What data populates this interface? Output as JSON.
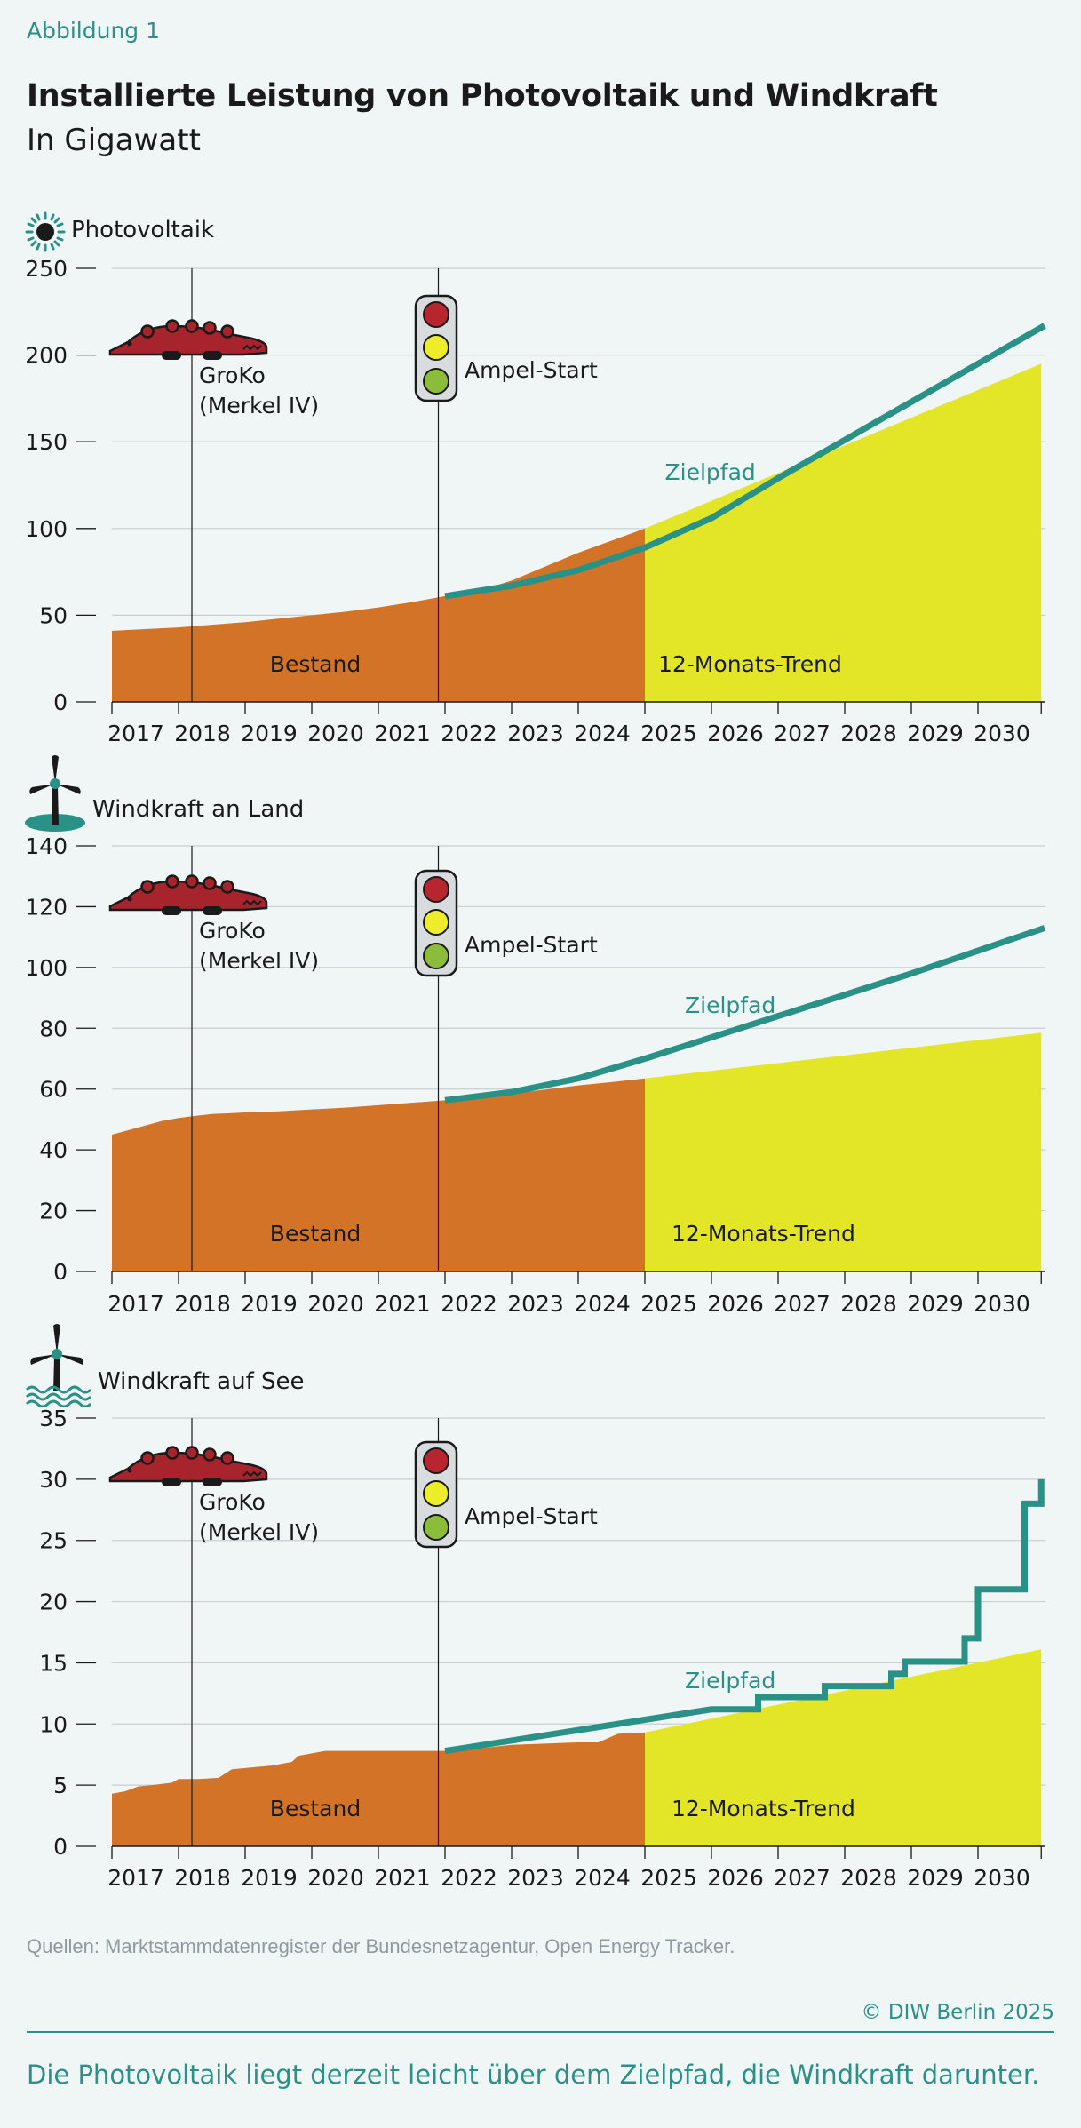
{
  "figure_label": "Abbildung 1",
  "title": "Installierte Leistung von Photovoltaik und Windkraft",
  "subtitle": "In Gigawatt",
  "source": "Quellen: Marktstammdatenregister der Bundesnetzagentur, Open Energy Tracker.",
  "copyright": "© DIW Berlin 2025",
  "caption": "Die Photovoltaik liegt derzeit leicht über dem Zielpfad, die Windkraft darunter.",
  "colors": {
    "bestand": "#d27328",
    "trend": "#e3e527",
    "zielpfad": "#2a9186",
    "grid": "#c8cfd1",
    "background": "#f0f5f5",
    "croc": "#a8242d",
    "light_red": "#b7262f",
    "light_yellow": "#eded2b",
    "light_green": "#8bbd3a"
  },
  "annotations": {
    "groko": "GroKo",
    "groko_sub": "(Merkel IV)",
    "ampel": "Ampel-Start",
    "zielpfad": "Zielpfad",
    "bestand": "Bestand",
    "trend": "12-Monats-Trend"
  },
  "chart_data": [
    {
      "type": "area",
      "panel_title": "Photovoltaik",
      "icon": "sun-icon",
      "x_ticks": [
        "2017",
        "2018",
        "2019",
        "2020",
        "2021",
        "2022",
        "2023",
        "2024",
        "2025",
        "2026",
        "2027",
        "2028",
        "2029",
        "2030"
      ],
      "y_ticks": [
        0,
        50,
        100,
        150,
        200,
        250
      ],
      "ylim": [
        0,
        250
      ],
      "events": [
        {
          "label": "GroKo",
          "date": 2018.2
        },
        {
          "label": "Ampel-Start",
          "date": 2021.9
        }
      ],
      "series": [
        {
          "name": "Bestand",
          "type": "area",
          "x": [
            2017.0,
            2017.5,
            2018.0,
            2018.5,
            2019.0,
            2019.5,
            2020.0,
            2020.5,
            2021.0,
            2021.5,
            2022.0,
            2022.5,
            2023.0,
            2023.5,
            2024.0,
            2024.5,
            2025.0
          ],
          "values": [
            41,
            42,
            43,
            44.5,
            46,
            48,
            50,
            52,
            54.5,
            57.5,
            61,
            64,
            70,
            78,
            86,
            93,
            100
          ]
        },
        {
          "name": "12-Monats-Trend",
          "type": "area",
          "x": [
            2025.0,
            2030.95
          ],
          "values": [
            100,
            195
          ]
        },
        {
          "name": "Zielpfad",
          "type": "line",
          "x": [
            2022.0,
            2023.0,
            2024.0,
            2025.0,
            2026.0,
            2027.0,
            2028.0,
            2029.0,
            2030.0,
            2031.0
          ],
          "values": [
            61,
            67,
            76,
            89,
            106,
            129,
            151,
            173,
            195,
            217
          ]
        }
      ]
    },
    {
      "type": "area",
      "panel_title": "Windkraft an Land",
      "icon": "wind-turbine-land-icon",
      "x_ticks": [
        "2017",
        "2018",
        "2019",
        "2020",
        "2021",
        "2022",
        "2023",
        "2024",
        "2025",
        "2026",
        "2027",
        "2028",
        "2029",
        "2030"
      ],
      "y_ticks": [
        0,
        20,
        40,
        60,
        80,
        100,
        120,
        140
      ],
      "ylim": [
        0,
        140
      ],
      "events": [
        {
          "label": "GroKo",
          "date": 2018.2
        },
        {
          "label": "Ampel-Start",
          "date": 2021.9
        }
      ],
      "series": [
        {
          "name": "Bestand",
          "type": "area",
          "x": [
            2017.0,
            2017.25,
            2017.5,
            2017.75,
            2018.0,
            2018.25,
            2018.5,
            2019.0,
            2019.5,
            2020.0,
            2020.5,
            2021.0,
            2021.5,
            2022.0,
            2022.5,
            2023.0,
            2023.5,
            2024.0,
            2024.5,
            2025.0
          ],
          "values": [
            45,
            46.5,
            48,
            49.5,
            50.5,
            51.2,
            51.8,
            52.3,
            52.7,
            53.3,
            53.9,
            54.7,
            55.5,
            56.3,
            57.3,
            58.5,
            59.8,
            61.2,
            62.3,
            63.5
          ]
        },
        {
          "name": "12-Monats-Trend",
          "type": "area",
          "x": [
            2025.0,
            2030.95
          ],
          "values": [
            63.5,
            78.5
          ]
        },
        {
          "name": "Zielpfad",
          "type": "line",
          "x": [
            2022.0,
            2023.0,
            2024.0,
            2025.0,
            2026.0,
            2027.0,
            2028.0,
            2029.0,
            2030.0,
            2031.0
          ],
          "values": [
            56.3,
            59,
            63.5,
            70,
            77,
            84,
            91,
            98,
            105.5,
            113
          ]
        }
      ]
    },
    {
      "type": "area",
      "panel_title": "Windkraft auf See",
      "icon": "wind-turbine-sea-icon",
      "x_ticks": [
        "2017",
        "2018",
        "2019",
        "2020",
        "2021",
        "2022",
        "2023",
        "2024",
        "2025",
        "2026",
        "2027",
        "2028",
        "2029",
        "2030"
      ],
      "y_ticks": [
        0,
        5,
        10,
        15,
        20,
        25,
        30,
        35
      ],
      "ylim": [
        0,
        35
      ],
      "events": [
        {
          "label": "GroKo",
          "date": 2018.2
        },
        {
          "label": "Ampel-Start",
          "date": 2021.9
        }
      ],
      "series": [
        {
          "name": "Bestand",
          "type": "area",
          "x": [
            2017.0,
            2017.2,
            2017.4,
            2017.6,
            2017.9,
            2018.0,
            2018.3,
            2018.6,
            2018.8,
            2019.0,
            2019.4,
            2019.7,
            2019.8,
            2020.0,
            2020.2,
            2020.5,
            2021.0,
            2021.5,
            2022.0,
            2022.5,
            2023.0,
            2023.5,
            2024.0,
            2024.3,
            2024.6,
            2025.0
          ],
          "values": [
            4.3,
            4.5,
            4.9,
            5.0,
            5.2,
            5.5,
            5.5,
            5.6,
            6.3,
            6.4,
            6.6,
            6.9,
            7.4,
            7.6,
            7.8,
            7.8,
            7.8,
            7.8,
            7.8,
            8.0,
            8.3,
            8.4,
            8.5,
            8.5,
            9.2,
            9.3
          ]
        },
        {
          "name": "12-Monats-Trend",
          "type": "area",
          "x": [
            2025.0,
            2030.95
          ],
          "values": [
            9.3,
            16.1
          ]
        },
        {
          "name": "Zielpfad",
          "type": "step",
          "x": [
            2022.0,
            2026.0,
            2026.7,
            2027.7,
            2028.7,
            2028.9,
            2029.2,
            2029.8,
            2030.0,
            2030.7,
            2030.95
          ],
          "values": [
            7.8,
            11.2,
            12.2,
            13.1,
            14.1,
            15.1,
            15.1,
            17.0,
            21.0,
            28.0,
            30.0
          ]
        }
      ]
    }
  ]
}
